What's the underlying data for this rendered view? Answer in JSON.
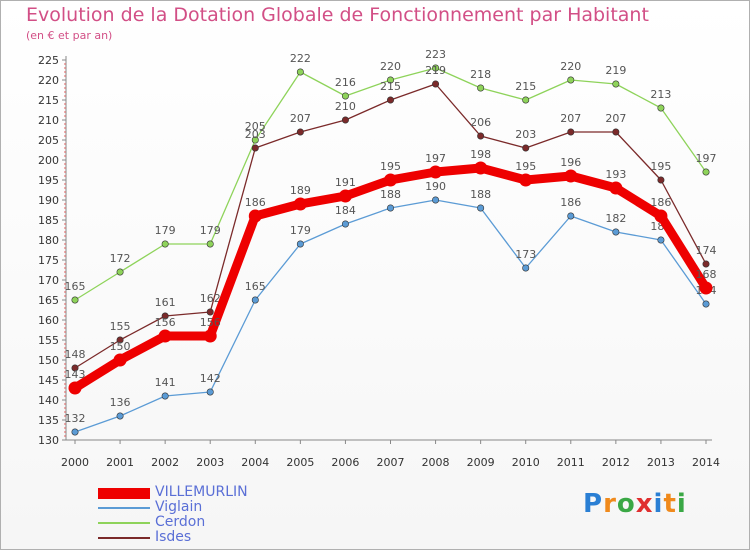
{
  "title": "Evolution de la Dotation Globale de Fonctionnement par Habitant",
  "subtitle": "(en € et par an)",
  "logo": {
    "text": "Proxiti",
    "colors": [
      "#2a7fd4",
      "#f08a1c",
      "#3aa845",
      "#e02f2f",
      "#2a7fd4",
      "#f08a1c",
      "#3aa845"
    ]
  },
  "chart_data": {
    "type": "line",
    "x": [
      "2000",
      "2001",
      "2002",
      "2003",
      "2004",
      "2005",
      "2006",
      "2007",
      "2008",
      "2009",
      "2010",
      "2011",
      "2012",
      "2013",
      "2014"
    ],
    "ylim": [
      130,
      225
    ],
    "yticks": [
      130,
      135,
      140,
      145,
      150,
      155,
      160,
      165,
      170,
      175,
      180,
      185,
      190,
      195,
      200,
      205,
      210,
      215,
      220,
      225
    ],
    "grid": false,
    "legend_position": "bottom-left",
    "series": [
      {
        "name": "VILLEMURLIN",
        "color": "#ee0000",
        "values": [
          143,
          150,
          156,
          156,
          186,
          189,
          191,
          195,
          197,
          198,
          195,
          196,
          193,
          186,
          168
        ]
      },
      {
        "name": "Viglain",
        "color": "#5b9bd5",
        "values": [
          132,
          136,
          141,
          142,
          165,
          179,
          184,
          188,
          190,
          188,
          173,
          186,
          182,
          180,
          164
        ]
      },
      {
        "name": "Cerdon",
        "color": "#8ed35a",
        "values": [
          165,
          172,
          179,
          179,
          205,
          222,
          216,
          220,
          223,
          218,
          215,
          220,
          219,
          213,
          197
        ]
      },
      {
        "name": "Isdes",
        "color": "#7b2a2a",
        "values": [
          148,
          155,
          161,
          162,
          203,
          207,
          210,
          215,
          219,
          206,
          203,
          207,
          207,
          195,
          174
        ]
      }
    ]
  }
}
